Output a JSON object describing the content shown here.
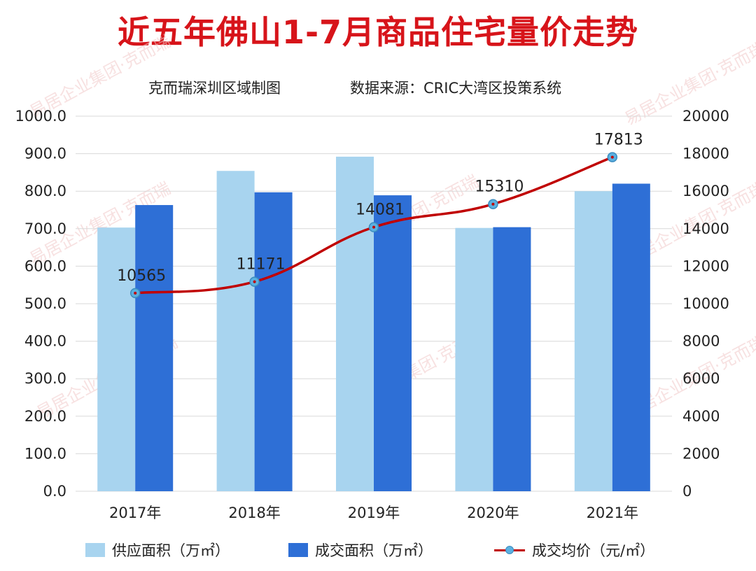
{
  "title": "近五年佛山1-7月商品住宅量价走势",
  "subtitle_left": "克而瑞深圳区域制图",
  "subtitle_right": "数据来源：CRIC大湾区投策系统",
  "watermark_text": "易居企业集团·克而瑞",
  "colors": {
    "title": "#d7141a",
    "supply": "#a8d4ef",
    "deal": "#2e6fd6",
    "price_line": "#c00000",
    "price_marker": "#5bb0e0"
  },
  "legend": {
    "supply": "供应面积（万㎡）",
    "deal": "成交面积（万㎡）",
    "price": "成交均价（元/㎡）"
  },
  "chart_data": {
    "type": "bar",
    "categories": [
      "2017年",
      "2018年",
      "2019年",
      "2020年",
      "2021年"
    ],
    "series": [
      {
        "name": "供应面积（万㎡）",
        "type": "bar",
        "axis": "left",
        "values": [
          703,
          854,
          892,
          702,
          800
        ]
      },
      {
        "name": "成交面积（万㎡）",
        "type": "bar",
        "axis": "left",
        "values": [
          763,
          797,
          789,
          704,
          820
        ]
      },
      {
        "name": "成交均价（元/㎡）",
        "type": "line",
        "axis": "right",
        "values": [
          10565,
          11171,
          14081,
          15310,
          17813
        ]
      }
    ],
    "y_left": {
      "min": 0,
      "max": 1000,
      "step": 100,
      "ticks": [
        "0.0",
        "100.0",
        "200.0",
        "300.0",
        "400.0",
        "500.0",
        "600.0",
        "700.0",
        "800.0",
        "900.0",
        "1000.0"
      ]
    },
    "y_right": {
      "min": 0,
      "max": 20000,
      "step": 2000,
      "ticks": [
        "0",
        "2000",
        "4000",
        "6000",
        "8000",
        "10000",
        "12000",
        "14000",
        "16000",
        "18000",
        "20000"
      ]
    },
    "line_labels": [
      "10565",
      "11171",
      "14081",
      "15310",
      "17813"
    ],
    "grid": true,
    "legend_position": "bottom"
  }
}
